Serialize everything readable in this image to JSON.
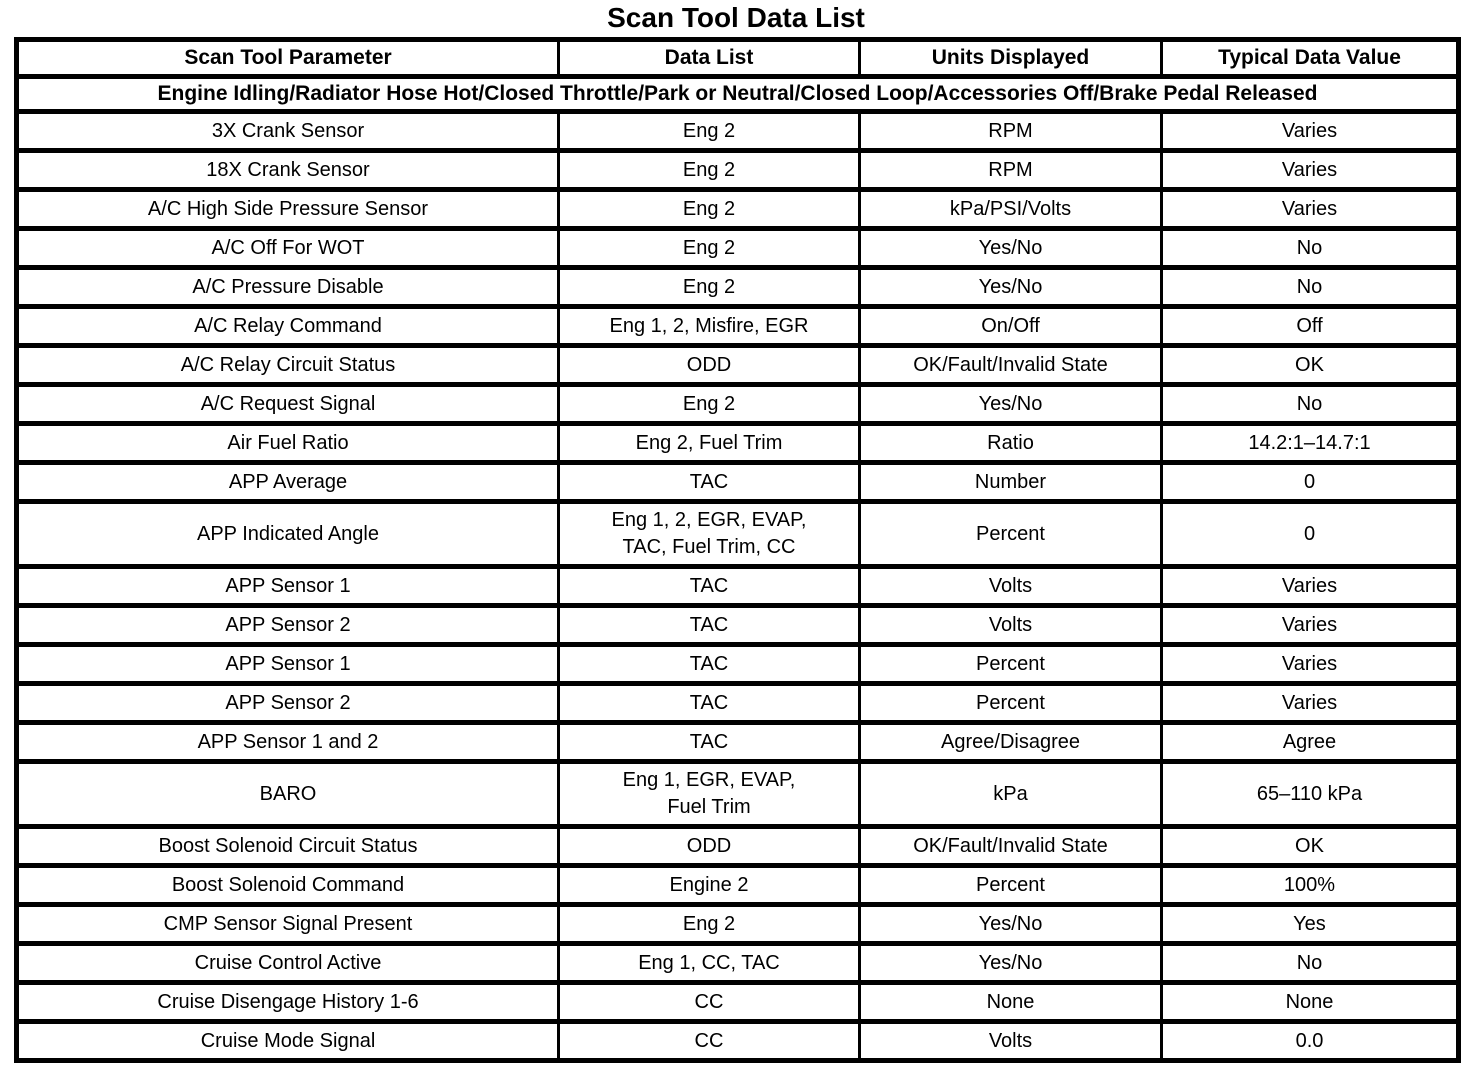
{
  "title": "Scan Tool Data List",
  "table": {
    "columns": [
      "Scan Tool Parameter",
      "Data List",
      "Units Displayed",
      "Typical Data Value"
    ],
    "condition": "Engine Idling/Radiator Hose Hot/Closed Throttle/Park or Neutral/Closed Loop/Accessories Off/Brake Pedal Released",
    "rows": [
      {
        "parameter": "3X Crank Sensor",
        "data_list": "Eng 2",
        "units": "RPM",
        "value": "Varies"
      },
      {
        "parameter": "18X Crank Sensor",
        "data_list": "Eng 2",
        "units": "RPM",
        "value": "Varies"
      },
      {
        "parameter": "A/C High Side Pressure Sensor",
        "data_list": "Eng 2",
        "units": "kPa/PSI/Volts",
        "value": "Varies"
      },
      {
        "parameter": "A/C Off For WOT",
        "data_list": "Eng 2",
        "units": "Yes/No",
        "value": "No"
      },
      {
        "parameter": "A/C Pressure Disable",
        "data_list": "Eng 2",
        "units": "Yes/No",
        "value": "No"
      },
      {
        "parameter": "A/C Relay Command",
        "data_list": "Eng 1, 2, Misfire, EGR",
        "units": "On/Off",
        "value": "Off"
      },
      {
        "parameter": "A/C Relay Circuit Status",
        "data_list": "ODD",
        "units": "OK/Fault/Invalid State",
        "value": "OK"
      },
      {
        "parameter": "A/C Request Signal",
        "data_list": "Eng 2",
        "units": "Yes/No",
        "value": "No"
      },
      {
        "parameter": "Air Fuel Ratio",
        "data_list": "Eng 2, Fuel Trim",
        "units": "Ratio",
        "value": "14.2:1–14.7:1"
      },
      {
        "parameter": "APP Average",
        "data_list": "TAC",
        "units": "Number",
        "value": "0"
      },
      {
        "parameter": "APP Indicated Angle",
        "data_list": "Eng 1, 2, EGR, EVAP,\nTAC, Fuel Trim, CC",
        "units": "Percent",
        "value": "0"
      },
      {
        "parameter": "APP Sensor 1",
        "data_list": "TAC",
        "units": "Volts",
        "value": "Varies"
      },
      {
        "parameter": "APP Sensor 2",
        "data_list": "TAC",
        "units": "Volts",
        "value": "Varies"
      },
      {
        "parameter": "APP Sensor 1",
        "data_list": "TAC",
        "units": "Percent",
        "value": "Varies"
      },
      {
        "parameter": "APP Sensor 2",
        "data_list": "TAC",
        "units": "Percent",
        "value": "Varies"
      },
      {
        "parameter": "APP Sensor 1 and 2",
        "data_list": "TAC",
        "units": "Agree/Disagree",
        "value": "Agree"
      },
      {
        "parameter": "BARO",
        "data_list": "Eng 1, EGR, EVAP,\nFuel Trim",
        "units": "kPa",
        "value": "65–110 kPa"
      },
      {
        "parameter": "Boost Solenoid Circuit Status",
        "data_list": "ODD",
        "units": "OK/Fault/Invalid State",
        "value": "OK"
      },
      {
        "parameter": "Boost Solenoid Command",
        "data_list": "Engine 2",
        "units": "Percent",
        "value": "100%"
      },
      {
        "parameter": "CMP Sensor Signal Present",
        "data_list": "Eng 2",
        "units": "Yes/No",
        "value": "Yes"
      },
      {
        "parameter": "Cruise Control Active",
        "data_list": "Eng 1, CC, TAC",
        "units": "Yes/No",
        "value": "No"
      },
      {
        "parameter": "Cruise Disengage History 1-6",
        "data_list": "CC",
        "units": "None",
        "value": "None"
      },
      {
        "parameter": "Cruise Mode Signal",
        "data_list": "CC",
        "units": "Volts",
        "value": "0.0"
      }
    ]
  }
}
